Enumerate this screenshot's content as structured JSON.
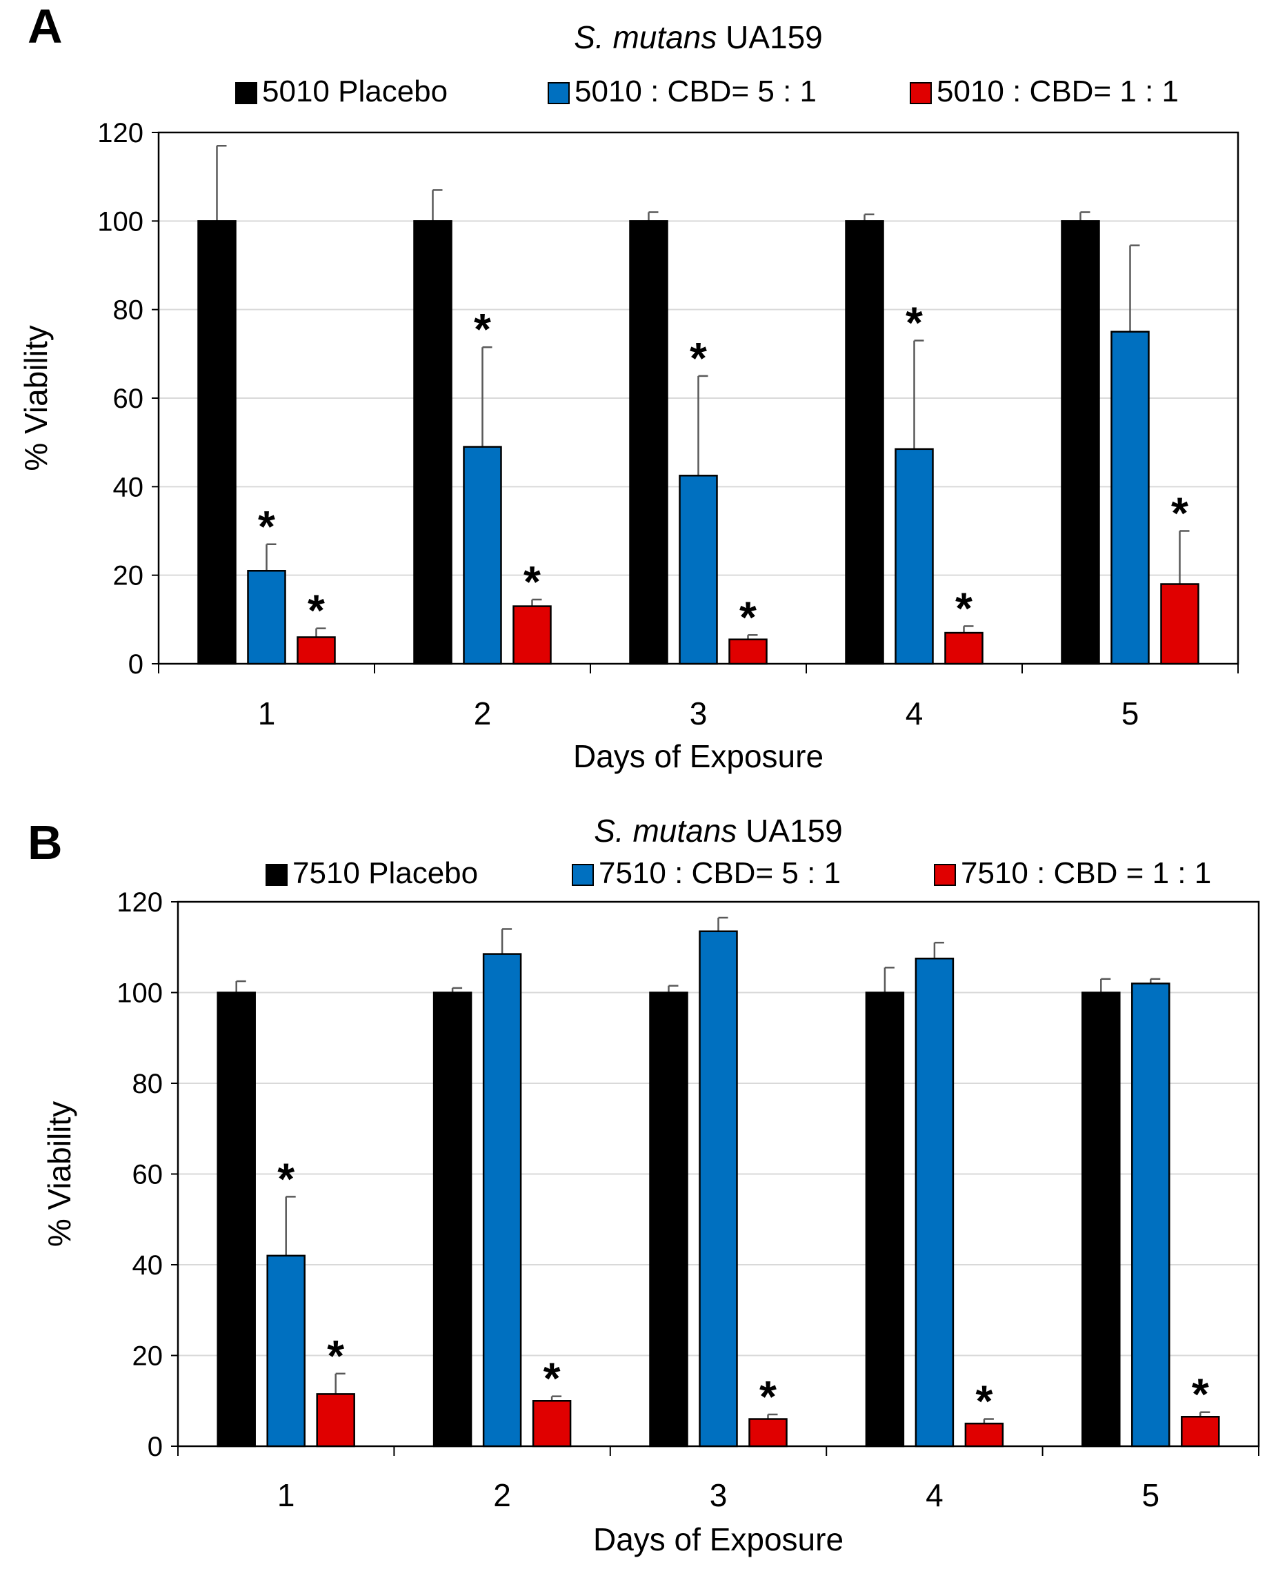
{
  "chart_data": [
    {
      "panel": "A",
      "type": "bar",
      "title_italic": "S. mutans",
      "title_rest": " UA159",
      "xlabel": "Days of Exposure",
      "ylabel": "% Viability",
      "ylim": [
        0,
        120
      ],
      "yticks": [
        "0",
        "20",
        "40",
        "60",
        "80",
        "100",
        "120"
      ],
      "categories": [
        "1",
        "2",
        "3",
        "4",
        "5"
      ],
      "grid": true,
      "legend_position": "top",
      "significance_marker": "*",
      "series": [
        {
          "name": "5010 Placebo",
          "color": "#000000",
          "values": [
            100,
            100,
            100,
            100,
            100
          ],
          "errors": [
            17,
            7,
            2,
            1.5,
            2
          ],
          "significant": [
            false,
            false,
            false,
            false,
            false
          ]
        },
        {
          "name": "5010 : CBD= 5 : 1",
          "color": "#0070C0",
          "values": [
            21,
            49,
            42.5,
            48.5,
            75
          ],
          "errors": [
            6,
            22.5,
            22.5,
            24.5,
            19.5
          ],
          "significant": [
            true,
            true,
            true,
            true,
            false
          ]
        },
        {
          "name": "5010 : CBD= 1 : 1",
          "color": "#E00000",
          "values": [
            6,
            13,
            5.5,
            7,
            18
          ],
          "errors": [
            2,
            1.5,
            1,
            1.5,
            12
          ],
          "significant": [
            true,
            true,
            true,
            true,
            true
          ]
        }
      ]
    },
    {
      "panel": "B",
      "type": "bar",
      "title_italic": "S. mutans",
      "title_rest": " UA159",
      "xlabel": "Days of Exposure",
      "ylabel": "% Viability",
      "ylim": [
        0,
        120
      ],
      "yticks": [
        "0",
        "20",
        "40",
        "60",
        "80",
        "100",
        "120"
      ],
      "categories": [
        "1",
        "2",
        "3",
        "4",
        "5"
      ],
      "grid": true,
      "legend_position": "top",
      "significance_marker": "*",
      "series": [
        {
          "name": "7510 Placebo",
          "color": "#000000",
          "values": [
            100,
            100,
            100,
            100,
            100
          ],
          "errors": [
            2.5,
            1,
            1.5,
            5.5,
            3
          ],
          "significant": [
            false,
            false,
            false,
            false,
            false
          ]
        },
        {
          "name": "7510 : CBD= 5 : 1",
          "color": "#0070C0",
          "values": [
            42,
            108.5,
            113.5,
            107.5,
            102
          ],
          "errors": [
            13,
            5.5,
            3,
            3.5,
            1
          ],
          "significant": [
            true,
            false,
            false,
            false,
            false
          ]
        },
        {
          "name": "7510 : CBD = 1 : 1",
          "color": "#E00000",
          "values": [
            11.5,
            10,
            6,
            5,
            6.5
          ],
          "errors": [
            4.5,
            1,
            1,
            1,
            1
          ],
          "significant": [
            true,
            true,
            true,
            true,
            true
          ]
        }
      ]
    }
  ]
}
